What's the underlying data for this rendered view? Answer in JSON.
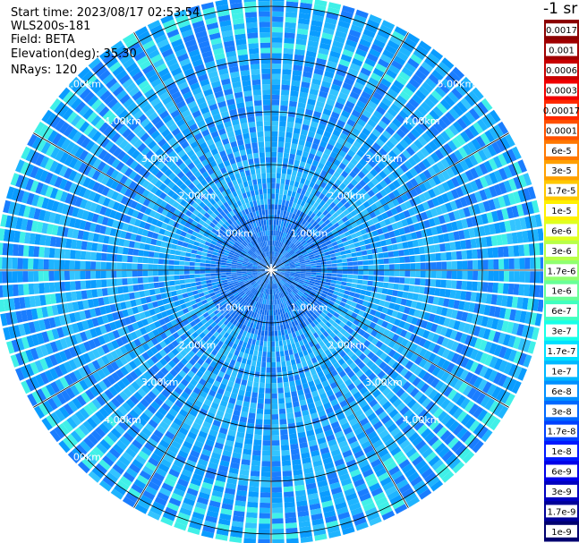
{
  "info": {
    "start_time": "Start time: 2023/08/17 02:53:54",
    "device": "WLS200s-181",
    "field": "Field: BETA",
    "elevation": "Elevation(deg): 35.30",
    "nrays": "NRays: 120"
  },
  "chart_data": {
    "type": "heatmap",
    "projection": "polar-ppi",
    "field": "BETA",
    "units": "-1 sr",
    "n_rays": 120,
    "range_rings_km": [
      1,
      2,
      3,
      4,
      5
    ],
    "ring_labels": [
      "1.00km",
      "2.00km",
      "3.00km",
      "4.00km",
      "5.00km"
    ],
    "max_range_km": 5.2,
    "colorbar": {
      "title": "-1 sr",
      "labels": [
        "0.0017",
        "0.001",
        "0.0006",
        "0.0003",
        "0.00017",
        "0.0001",
        "6e-5",
        "3e-5",
        "1.7e-5",
        "1e-5",
        "6e-6",
        "3e-6",
        "1.7e-6",
        "1e-6",
        "6e-7",
        "3e-7",
        "1.7e-7",
        "1e-7",
        "6e-8",
        "3e-8",
        "1.7e-8",
        "1e-8",
        "6e-9",
        "3e-9",
        "1.7e-9",
        "1e-9"
      ],
      "colors": [
        "#8b0000",
        "#a00000",
        "#c80000",
        "#f00000",
        "#ff2800",
        "#ff5000",
        "#ff7800",
        "#ffa000",
        "#ffc800",
        "#fff000",
        "#e0ff20",
        "#b8ff48",
        "#90ff70",
        "#68ff98",
        "#40ffc0",
        "#18ffe8",
        "#00e0ff",
        "#00b8ff",
        "#0090ff",
        "#0068ff",
        "#0040ff",
        "#0018ff",
        "#0000e8",
        "#0000c0",
        "#000098",
        "#000070"
      ],
      "dark_label_colors": [
        "#ffffff"
      ]
    },
    "dominant_value_range": [
      "1e-8",
      "1.7e-7"
    ],
    "palette": [
      "#1a7dff",
      "#0a9cff",
      "#1eb4ff",
      "#33c4ff",
      "#0f6cf0",
      "#2a8cff",
      "#50d8ff",
      "#0b5ce0",
      "#40f0e8"
    ]
  }
}
